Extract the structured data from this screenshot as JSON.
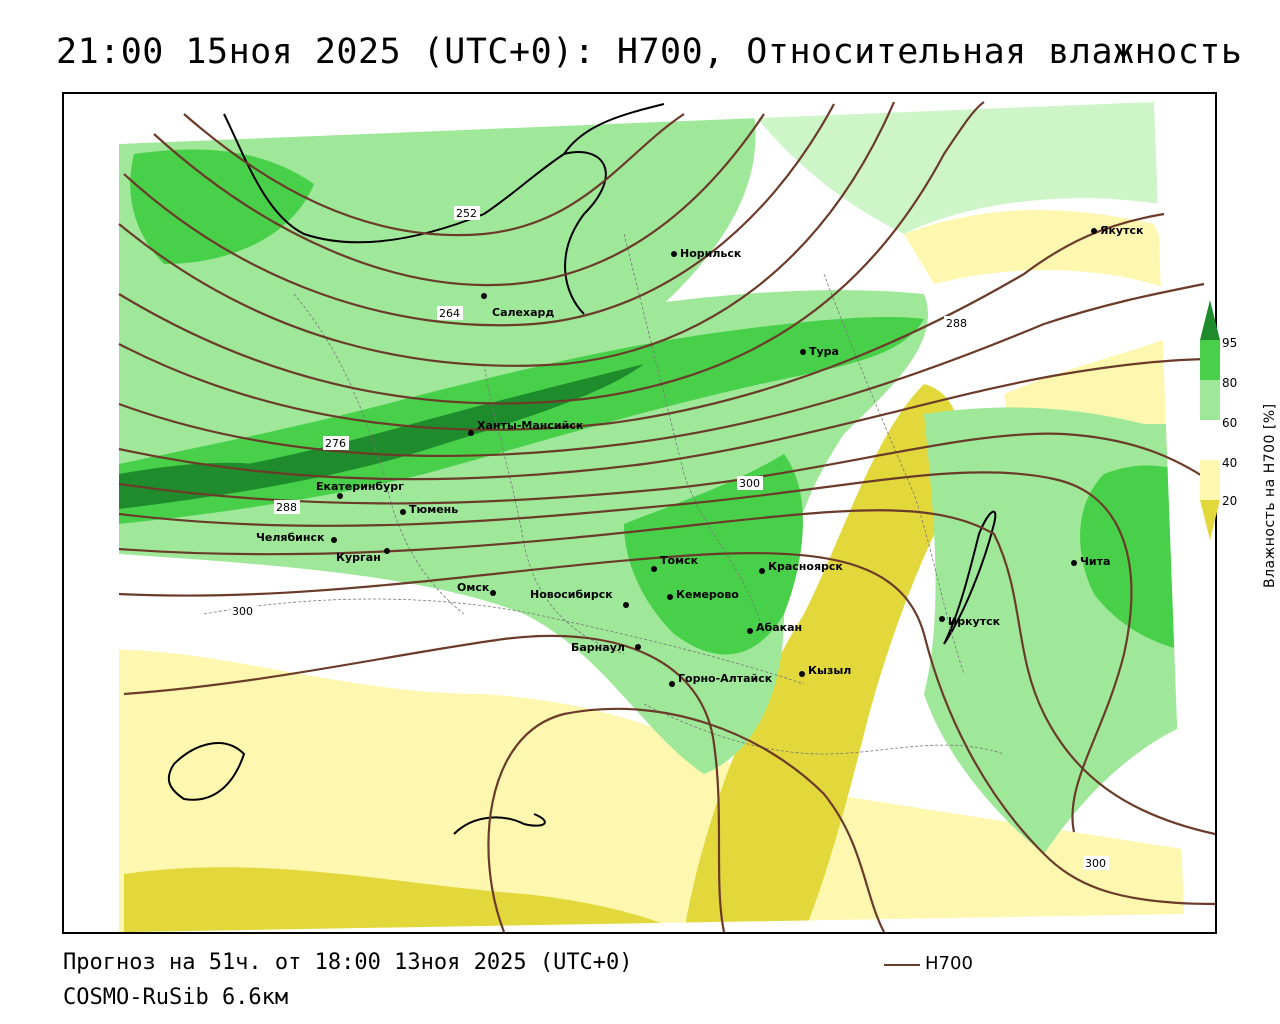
{
  "title": "21:00 15ноя 2025 (UTC+0): H700, Относительная влажность",
  "footer": {
    "forecast": "Прогноз на 51ч. от 18:00 13ноя 2025 (UTC+0)",
    "model": "COSMO-RuSib 6.6км"
  },
  "legend": {
    "line_label": "H700",
    "line_color": "#6b3b2a"
  },
  "colorbar": {
    "title": "Влажность на H700 [%]",
    "ticks": [
      "95",
      "80",
      "60",
      "40",
      "20"
    ],
    "colors": {
      "very_dry": "#e2d83c",
      "dry": "#fdf7b0",
      "neutral": "#ffffff",
      "moist_light": "#cdf5c8",
      "moist": "#9fe89a",
      "wet": "#49d04a",
      "very_wet": "#1e8c2c"
    }
  },
  "cities": [
    {
      "name": "Якутск"
    },
    {
      "name": "Норильск"
    },
    {
      "name": "Салехард"
    },
    {
      "name": "Тура"
    },
    {
      "name": "Ханты-Мансийск"
    },
    {
      "name": "Екатеринбург"
    },
    {
      "name": "Тюмень"
    },
    {
      "name": "Челябинск"
    },
    {
      "name": "Курган"
    },
    {
      "name": "Омск"
    },
    {
      "name": "Новосибирск"
    },
    {
      "name": "Томск"
    },
    {
      "name": "Кемерово"
    },
    {
      "name": "Красноярск"
    },
    {
      "name": "Абакан"
    },
    {
      "name": "Барнаул"
    },
    {
      "name": "Горно-Алтайск"
    },
    {
      "name": "Кызыл"
    },
    {
      "name": "Иркутск"
    },
    {
      "name": "Чита"
    }
  ],
  "isoline_labels": [
    "252",
    "264",
    "276",
    "288",
    "288",
    "300",
    "300",
    "300"
  ]
}
